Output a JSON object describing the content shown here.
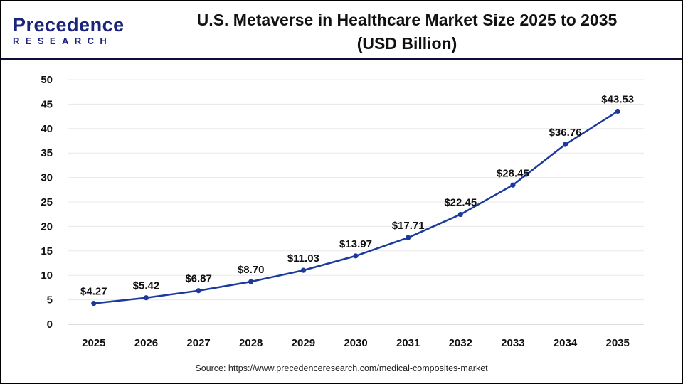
{
  "logo": {
    "word": "Precedence",
    "sub": "RESEARCH"
  },
  "source": "Source: https://www.precedenceresearch.com/medical-composites-market",
  "colors": {
    "line": "#1a3a9c",
    "grid": "#e8e8e8",
    "header_rule": "#0d0d3a"
  },
  "chart_data": {
    "type": "line",
    "title": "U.S. Metaverse in Healthcare Market Size 2025 to 2035 (USD Billion)",
    "title_lines": [
      "U.S. Metaverse in Healthcare Market Size 2025 to 2035",
      "(USD Billion)"
    ],
    "categories": [
      "2025",
      "2026",
      "2027",
      "2028",
      "2029",
      "2030",
      "2031",
      "2032",
      "2033",
      "2034",
      "2035"
    ],
    "values": [
      4.27,
      5.42,
      6.87,
      8.7,
      11.03,
      13.97,
      17.71,
      22.45,
      28.45,
      36.76,
      43.53
    ],
    "data_labels": [
      "$4.27",
      "$5.42",
      "$6.87",
      "$8.70",
      "$11.03",
      "$13.97",
      "$17.71",
      "$22.45",
      "$28.45",
      "$36.76",
      "$43.53"
    ],
    "ylim": [
      0,
      50
    ],
    "yticks": [
      0,
      5,
      10,
      15,
      20,
      25,
      30,
      35,
      40,
      45,
      50
    ],
    "xlabel": "",
    "ylabel": "",
    "grid": true,
    "legend": "none"
  }
}
